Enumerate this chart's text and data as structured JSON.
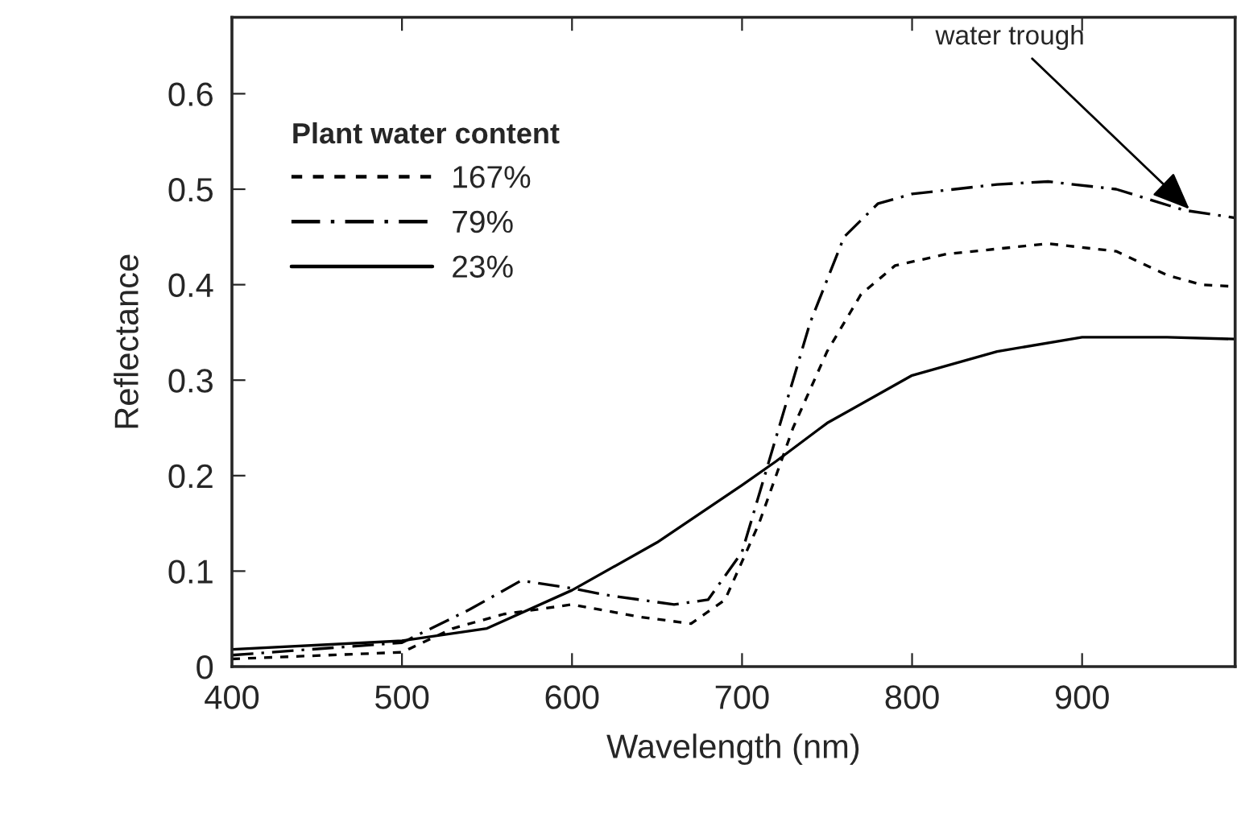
{
  "chart_data": {
    "type": "line",
    "xlabel": "Wavelength (nm)",
    "ylabel": "Reflectance",
    "legend_title": "Plant water content",
    "xlim": [
      400,
      990
    ],
    "ylim": [
      0,
      0.68
    ],
    "xticks": [
      400,
      500,
      600,
      700,
      800,
      900
    ],
    "yticks": [
      0,
      0.1,
      0.2,
      0.3,
      0.4,
      0.5,
      0.6
    ],
    "grid": false,
    "legend": "top left",
    "marker": "none",
    "series": [
      {
        "name": "167%",
        "color": "#000000",
        "line_style": "dashed",
        "x": [
          400,
          500,
          530,
          560,
          600,
          640,
          670,
          690,
          710,
          730,
          750,
          770,
          790,
          820,
          880,
          920,
          950,
          970,
          990
        ],
        "values": [
          0.008,
          0.015,
          0.04,
          0.055,
          0.065,
          0.052,
          0.045,
          0.07,
          0.15,
          0.25,
          0.33,
          0.39,
          0.42,
          0.432,
          0.443,
          0.435,
          0.41,
          0.4,
          0.398
        ]
      },
      {
        "name": "79%",
        "color": "#000000",
        "line_style": "dashdot",
        "x": [
          400,
          500,
          540,
          570,
          600,
          620,
          660,
          680,
          700,
          720,
          740,
          760,
          780,
          800,
          850,
          880,
          920,
          960,
          990
        ],
        "values": [
          0.012,
          0.025,
          0.06,
          0.09,
          0.082,
          0.075,
          0.065,
          0.07,
          0.12,
          0.24,
          0.36,
          0.45,
          0.485,
          0.495,
          0.505,
          0.508,
          0.5,
          0.478,
          0.47
        ]
      },
      {
        "name": "23%",
        "color": "#000000",
        "line_style": "solid",
        "x": [
          400,
          500,
          550,
          600,
          650,
          700,
          720,
          750,
          800,
          850,
          900,
          950,
          990
        ],
        "values": [
          0.018,
          0.027,
          0.04,
          0.08,
          0.13,
          0.19,
          0.215,
          0.255,
          0.305,
          0.33,
          0.345,
          0.345,
          0.343
        ]
      }
    ],
    "annotations": [
      {
        "text": "water trough",
        "x": 965,
        "y": 0.476
      }
    ]
  }
}
